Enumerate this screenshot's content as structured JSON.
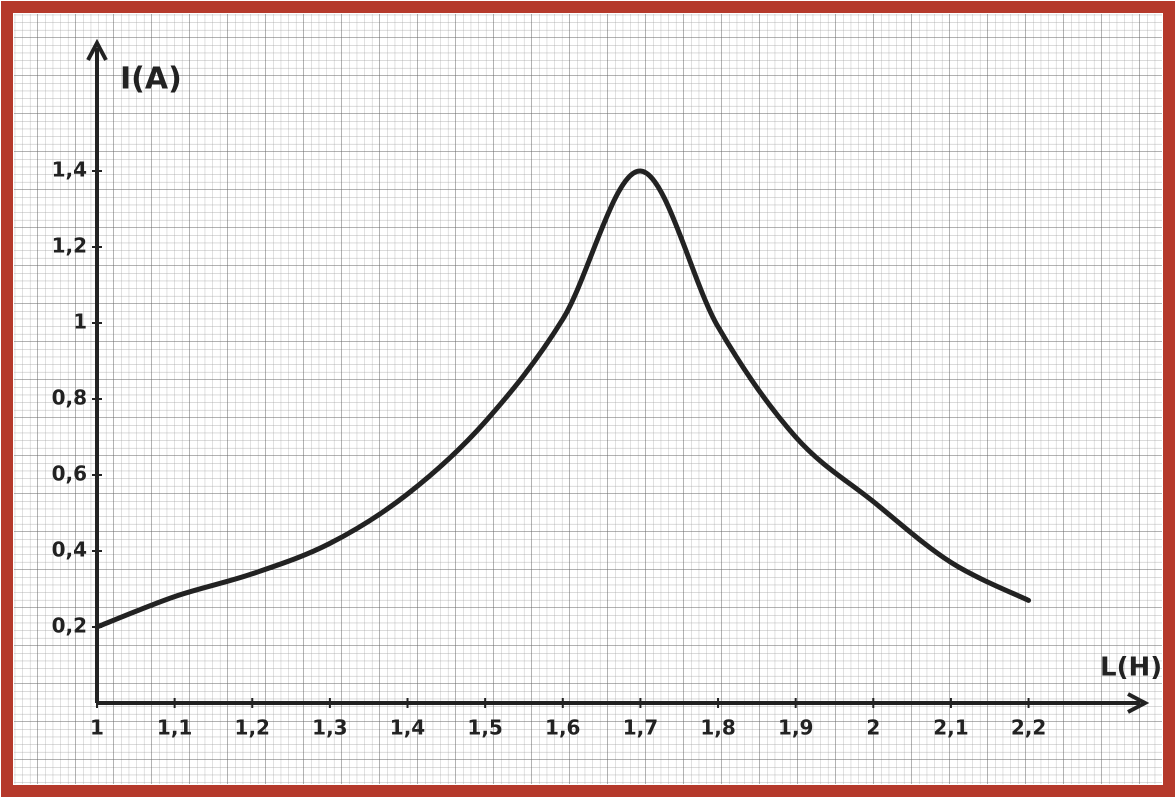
{
  "chart_data": {
    "type": "line",
    "x_label": "L(H)",
    "y_label": "I(A)",
    "x": [
      1,
      1.1,
      1.2,
      1.3,
      1.4,
      1.5,
      1.6,
      1.7,
      1.8,
      1.9,
      2,
      2.1,
      2.2
    ],
    "series": [
      {
        "color": "#222222",
        "values": [
          0.2,
          0.28,
          0.34,
          0.42,
          0.55,
          0.74,
          1.01,
          1.4,
          0.99,
          0.7,
          0.53,
          0.37,
          0.27
        ]
      }
    ],
    "xlim": [
      1,
      2.35
    ],
    "ylim": [
      0,
      1.7
    ],
    "xticks": [
      1,
      {
        "value": 1.1,
        "label": "1,1"
      },
      {
        "value": 1.2,
        "label": "1,2"
      },
      {
        "value": 1.3,
        "label": "1,3"
      },
      {
        "value": 1.4,
        "label": "1,4"
      },
      {
        "value": 1.5,
        "label": "1,5"
      },
      {
        "value": 1.6,
        "label": "1,6"
      },
      {
        "value": 1.7,
        "label": "1,7"
      },
      {
        "value": 1.8,
        "label": "1,8"
      },
      {
        "value": 1.9,
        "label": "1,9"
      },
      2,
      {
        "value": 2.1,
        "label": "2,1"
      },
      {
        "value": 2.2,
        "label": "2,2"
      }
    ],
    "yticks": [
      {
        "value": 0.2,
        "label": "0,2"
      },
      {
        "value": 0.4,
        "label": "0,4"
      },
      {
        "value": 0.6,
        "label": "0,6"
      },
      {
        "value": 0.8,
        "label": "0,8"
      },
      1,
      {
        "value": 1.2,
        "label": "1,2"
      },
      {
        "value": 1.4,
        "label": "1,4"
      }
    ]
  }
}
